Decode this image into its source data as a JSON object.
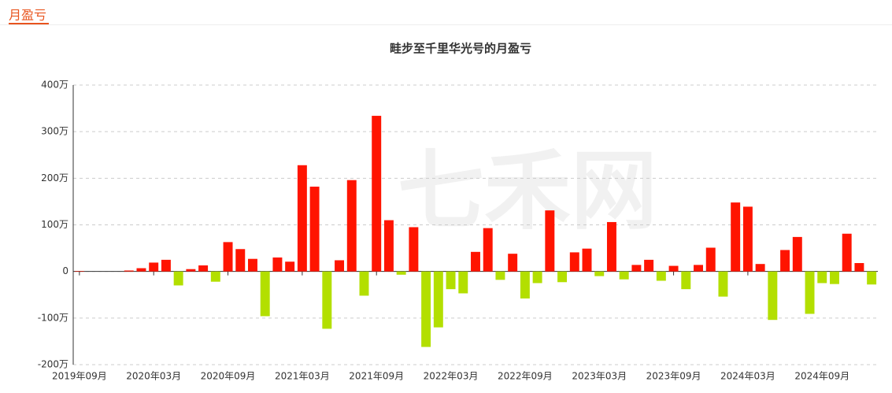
{
  "header": {
    "title": "月盈亏"
  },
  "chart_data": {
    "type": "bar",
    "title": "畦步至千里华光号的月盈亏",
    "watermark": "七禾网",
    "categories": [
      "2019年09月",
      null,
      null,
      null,
      null,
      null,
      "2020年03月",
      null,
      null,
      null,
      null,
      null,
      "2020年09月",
      null,
      null,
      null,
      null,
      null,
      "2021年03月",
      null,
      null,
      null,
      null,
      null,
      "2021年09月",
      null,
      null,
      null,
      null,
      null,
      "2022年03月",
      null,
      null,
      null,
      null,
      null,
      "2022年09月",
      null,
      null,
      null,
      null,
      null,
      "2023年03月",
      null,
      null,
      null,
      null,
      null,
      "2023年09月",
      null,
      null,
      null,
      null,
      null,
      "2024年03月",
      null,
      null,
      null,
      null,
      null,
      "2024年09月",
      null,
      null,
      null,
      null
    ],
    "values": [
      1,
      0,
      0,
      0,
      2,
      7,
      19,
      25,
      -30,
      5,
      13,
      -22,
      63,
      48,
      27,
      -96,
      30,
      21,
      228,
      182,
      -123,
      24,
      196,
      -52,
      334,
      110,
      -7,
      95,
      -162,
      -120,
      -38,
      -47,
      42,
      93,
      -18,
      38,
      -58,
      -25,
      131,
      -23,
      41,
      49,
      -10,
      106,
      -17,
      14,
      25,
      -20,
      12,
      -38,
      14,
      51,
      -54,
      148,
      139,
      16,
      -104,
      46,
      74,
      -91,
      -25,
      -27,
      81,
      18,
      -28
    ],
    "colors": {
      "positive": "#ff1400",
      "negative": "#b3df00"
    },
    "ylim": [
      -200,
      400
    ],
    "yticks": [
      {
        "value": -200,
        "label": "-200万"
      },
      {
        "value": -100,
        "label": "-100万"
      },
      {
        "value": 0,
        "label": "0"
      },
      {
        "value": 100,
        "label": "100万"
      },
      {
        "value": 200,
        "label": "200万"
      },
      {
        "value": 300,
        "label": "300万"
      },
      {
        "value": 400,
        "label": "400万"
      }
    ],
    "grid": true
  }
}
